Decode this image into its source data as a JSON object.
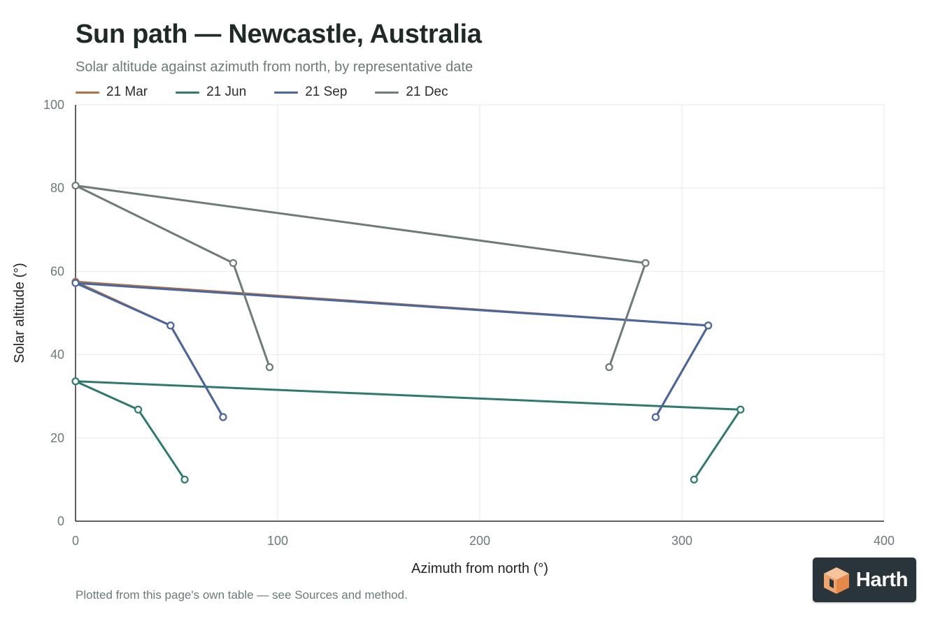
{
  "title": "Sun path — Newcastle, Australia",
  "subtitle": "Solar altitude against azimuth from north, by representative date",
  "footer": "Plotted from this page's own table — see Sources and method.",
  "logo": {
    "text": "Harth",
    "icon": "cube-logo-icon"
  },
  "colors": {
    "grid": "#e6e9e8",
    "axis": "#2b2b2b",
    "logo_bg": "#2a353b",
    "logo_accent": "#f0a46e"
  },
  "chart_data": {
    "type": "line",
    "xlabel": "Azimuth from north (°)",
    "ylabel": "Solar altitude (°)",
    "xlim": [
      0,
      400
    ],
    "ylim": [
      0,
      100
    ],
    "xticks": [
      0,
      100,
      200,
      300,
      400
    ],
    "yticks": [
      0,
      20,
      40,
      60,
      80,
      100
    ],
    "grid": true,
    "legend_position": "top-left",
    "series": [
      {
        "name": "21 Mar",
        "color": "#b5703d",
        "points": [
          [
            73,
            25
          ],
          [
            47,
            47
          ],
          [
            0,
            57.5
          ],
          [
            313,
            47
          ],
          [
            287,
            25
          ]
        ]
      },
      {
        "name": "21 Jun",
        "color": "#2f7a6e",
        "points": [
          [
            54,
            10
          ],
          [
            31,
            26.8
          ],
          [
            0,
            33.6
          ],
          [
            329,
            26.8
          ],
          [
            306,
            10
          ]
        ]
      },
      {
        "name": "21 Sep",
        "color": "#4a66a0",
        "points": [
          [
            73,
            25
          ],
          [
            47,
            47
          ],
          [
            0,
            57.2
          ],
          [
            313,
            47
          ],
          [
            287,
            25
          ]
        ]
      },
      {
        "name": "21 Dec",
        "color": "#6e7b78",
        "points": [
          [
            96,
            37
          ],
          [
            78,
            62
          ],
          [
            0,
            80.6
          ],
          [
            282,
            62
          ],
          [
            264,
            37
          ]
        ]
      }
    ]
  }
}
